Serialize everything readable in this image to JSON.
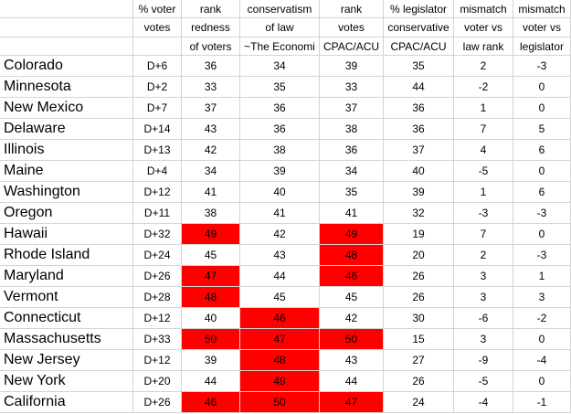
{
  "table": {
    "header": [
      [
        null,
        "% voter",
        "rank",
        "conservatism",
        "rank",
        "% legislator",
        "mismatch",
        "mismatch"
      ],
      [
        null,
        "votes",
        "redness",
        "of law",
        "votes",
        "conservative",
        "voter vs",
        "voter vs"
      ],
      [
        null,
        null,
        "of voters",
        "~The Economi",
        "CPAC/ACU",
        "CPAC/ACU",
        "law rank",
        "legislator"
      ]
    ],
    "rows": [
      [
        "Colorado",
        "D+6",
        36,
        34,
        39,
        35,
        2,
        -3
      ],
      [
        "Minnesota",
        "D+2",
        33,
        35,
        33,
        44,
        -2,
        0
      ],
      [
        "New Mexico",
        "D+7",
        37,
        36,
        37,
        36,
        1,
        0
      ],
      [
        "Delaware",
        "D+14",
        43,
        36,
        38,
        36,
        7,
        5
      ],
      [
        "Illinois",
        "D+13",
        42,
        38,
        36,
        37,
        4,
        6
      ],
      [
        "Maine",
        "D+4",
        34,
        39,
        34,
        40,
        -5,
        0
      ],
      [
        "Washington",
        "D+12",
        41,
        40,
        35,
        39,
        1,
        6
      ],
      [
        "Oregon",
        "D+11",
        38,
        41,
        41,
        32,
        -3,
        -3
      ],
      [
        "Hawaii",
        "D+32",
        49,
        42,
        49,
        19,
        7,
        0
      ],
      [
        "Rhode Island",
        "D+24",
        45,
        43,
        48,
        20,
        2,
        -3
      ],
      [
        "Maryland",
        "D+26",
        47,
        44,
        46,
        26,
        3,
        1
      ],
      [
        "Vermont",
        "D+28",
        48,
        45,
        45,
        26,
        3,
        3
      ],
      [
        "Connecticut",
        "D+12",
        40,
        46,
        42,
        30,
        -6,
        -2
      ],
      [
        "Massachusetts",
        "D+33",
        50,
        47,
        50,
        15,
        3,
        0
      ],
      [
        "New Jersey",
        "D+12",
        39,
        48,
        43,
        27,
        -9,
        -4
      ],
      [
        "New York",
        "D+20",
        44,
        49,
        44,
        26,
        -5,
        0
      ],
      [
        "California",
        "D+26",
        46,
        50,
        47,
        24,
        -4,
        -1
      ]
    ]
  }
}
